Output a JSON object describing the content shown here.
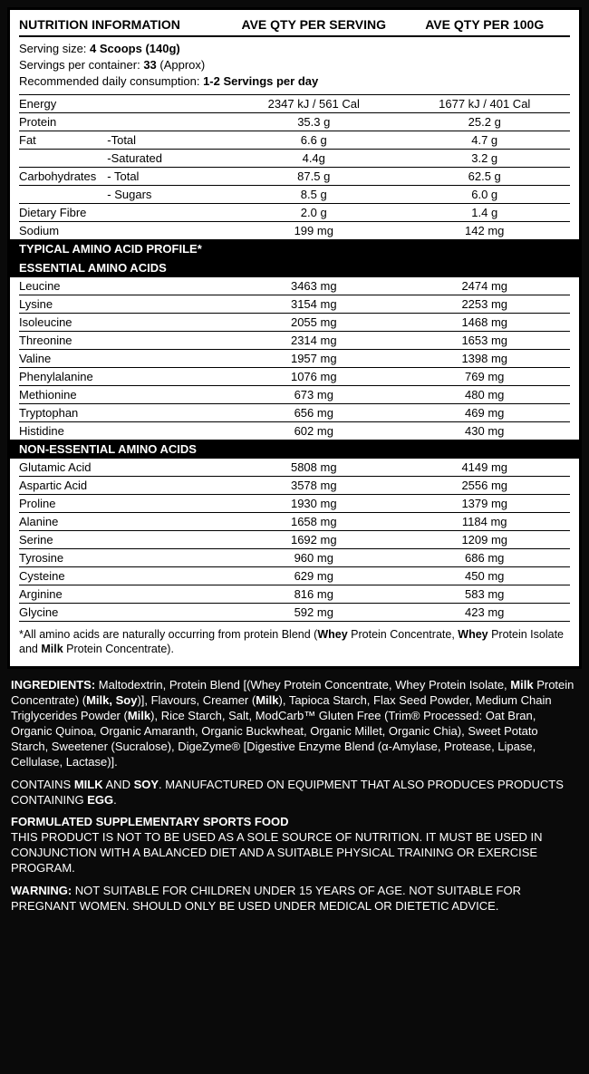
{
  "header": {
    "title": "NUTRITION INFORMATION",
    "col2": "AVE QTY PER SERVING",
    "col3": "AVE QTY PER 100G"
  },
  "serving": {
    "size_label": "Serving size:",
    "size_value": "4 Scoops (140g)",
    "per_container_label": "Servings per container:",
    "per_container_value": "33",
    "per_container_suffix": " (Approx)",
    "daily_label": "Recommended daily consumption:",
    "daily_value": "1-2 Servings per day"
  },
  "nutrients": [
    {
      "label": "Energy",
      "v1": "2347 kJ / 561 Cal",
      "v2": "1677 kJ / 401 Cal"
    },
    {
      "label": "Protein",
      "v1": "35.3 g",
      "v2": "25.2 g"
    },
    {
      "label": "Fat",
      "sub": "-Total",
      "v1": "6.6 g",
      "v2": "4.7 g"
    },
    {
      "label": "",
      "sub": "-Saturated",
      "v1": "4.4g",
      "v2": "3.2 g"
    },
    {
      "label": "Carbohydrates",
      "sub": "- Total",
      "v1": "87.5 g",
      "v2": "62.5 g"
    },
    {
      "label": "",
      "sub": "- Sugars",
      "v1": "8.5 g",
      "v2": "6.0 g"
    },
    {
      "label": "Dietary Fibre",
      "v1": "2.0 g",
      "v2": "1.4 g"
    },
    {
      "label": "Sodium",
      "v1": "199 mg",
      "v2": "142 mg"
    }
  ],
  "section_amino": "TYPICAL AMINO ACID PROFILE*",
  "section_essential": "ESSENTIAL AMINO ACIDS",
  "essential": [
    {
      "label": "Leucine",
      "v1": "3463 mg",
      "v2": "2474 mg"
    },
    {
      "label": "Lysine",
      "v1": "3154 mg",
      "v2": "2253 mg"
    },
    {
      "label": "Isoleucine",
      "v1": "2055 mg",
      "v2": "1468 mg"
    },
    {
      "label": "Threonine",
      "v1": "2314 mg",
      "v2": "1653 mg"
    },
    {
      "label": "Valine",
      "v1": "1957 mg",
      "v2": "1398 mg"
    },
    {
      "label": "Phenylalanine",
      "v1": "1076 mg",
      "v2": "769 mg"
    },
    {
      "label": "Methionine",
      "v1": "673 mg",
      "v2": "480 mg"
    },
    {
      "label": "Tryptophan",
      "v1": "656 mg",
      "v2": "469 mg"
    },
    {
      "label": "Histidine",
      "v1": "602 mg",
      "v2": "430 mg"
    }
  ],
  "section_nonessential": "NON-ESSENTIAL AMINO ACIDS",
  "nonessential": [
    {
      "label": "Glutamic Acid",
      "v1": "5808 mg",
      "v2": "4149 mg"
    },
    {
      "label": "Aspartic Acid",
      "v1": "3578 mg",
      "v2": "2556 mg"
    },
    {
      "label": "Proline",
      "v1": "1930 mg",
      "v2": "1379 mg"
    },
    {
      "label": "Alanine",
      "v1": "1658 mg",
      "v2": "1184 mg"
    },
    {
      "label": "Serine",
      "v1": "1692 mg",
      "v2": "1209 mg"
    },
    {
      "label": "Tyrosine",
      "v1": "960 mg",
      "v2": "686 mg"
    },
    {
      "label": "Cysteine",
      "v1": "629 mg",
      "v2": "450 mg"
    },
    {
      "label": "Arginine",
      "v1": "816 mg",
      "v2": "583 mg"
    },
    {
      "label": "Glycine",
      "v1": "592 mg",
      "v2": "423 mg"
    }
  ],
  "footnote": {
    "pre": "*All amino acids are naturally occurring from protein Blend (",
    "b1": "Whey",
    "mid1": " Protein Concentrate, ",
    "b2": "Whey",
    "mid2": " Protein Isolate and ",
    "b3": "Milk",
    "post": " Protein Concentrate)."
  },
  "ingredients": {
    "label": "INGREDIENTS:",
    "text1": " Maltodextrin, Protein Blend [(Whey Protein Concentrate, Whey Protein Isolate, ",
    "b_milk1": "Milk",
    "text2": " Protein Concentrate) (",
    "b_milksoy": "Milk, Soy",
    "text3": ")], Flavours, Creamer (",
    "b_milk2": "Milk",
    "text4": "), Tapioca Starch, Flax Seed Powder, Medium Chain Triglycerides Powder (",
    "b_milk3": "Milk",
    "text5": "), Rice Starch, Salt, ModCarb™ Gluten Free (Trim® Processed: Oat Bran, Organic Quinoa, Organic Amaranth, Organic Buckwheat, Organic Millet, Organic Chia), Sweet Potato Starch, Sweetener (Sucralose), DigeZyme® [Digestive Enzyme Blend (α-Amylase, Protease, Lipase, Cellulase, Lactase)]."
  },
  "contains": {
    "pre": "CONTAINS ",
    "b1": "MILK",
    "mid1": " AND ",
    "b2": "SOY",
    "mid2": ". MANUFACTURED ON EQUIPMENT THAT ALSO PRODUCES PRODUCTS CONTAINING ",
    "b3": "EGG",
    "post": "."
  },
  "formulated": {
    "title": "FORMULATED SUPPLEMENTARY SPORTS FOOD",
    "body": "THIS PRODUCT IS NOT TO BE USED AS A SOLE SOURCE OF NUTRITION. IT MUST BE USED IN CONJUNCTION WITH A BALANCED DIET AND A SUITABLE PHYSICAL TRAINING OR EXERCISE PROGRAM."
  },
  "warning": {
    "label": "WARNING:",
    "body": " NOT SUITABLE FOR CHILDREN UNDER 15 YEARS OF AGE. NOT SUITABLE FOR PREGNANT WOMEN. SHOULD ONLY BE USED UNDER MEDICAL OR DIETETIC ADVICE."
  }
}
